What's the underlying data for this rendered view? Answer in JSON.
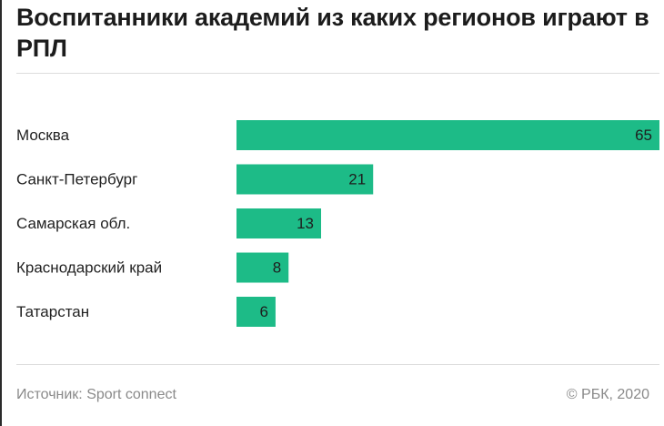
{
  "title": "Воспитанники академий из каких регионов играют в РПЛ",
  "footer": {
    "source": "Источник: Sport connect",
    "copyright": "© РБК, 2020"
  },
  "colors": {
    "bar": "#1dbb87",
    "text": "#1c1c1c",
    "muted": "#8a8a8a",
    "rule": "#dcdcdc"
  },
  "chart_data": {
    "type": "bar",
    "orientation": "horizontal",
    "categories": [
      "Москва",
      "Санкт-Петербург",
      "Самарская обл.",
      "Краснодарский край",
      "Татарстан"
    ],
    "values": [
      65,
      21,
      13,
      8,
      6
    ],
    "title": "Воспитанники академий из каких регионов играют в РПЛ",
    "xlim": [
      0,
      65
    ],
    "grid": false,
    "legend": "none",
    "data_labels": "inside-end"
  }
}
